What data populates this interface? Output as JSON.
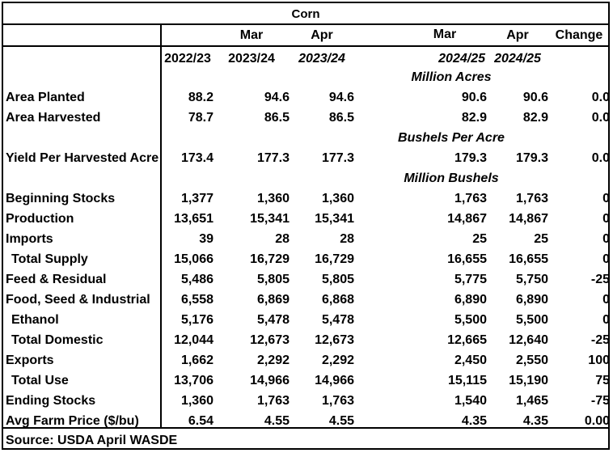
{
  "title": "Corn",
  "header": {
    "row1": [
      "Mar",
      "Apr",
      "Mar",
      "Apr",
      "Change"
    ],
    "row2": [
      "2022/23",
      "2023/24",
      "2023/24",
      "2024/25",
      "2024/25"
    ]
  },
  "units": {
    "acres": "Million Acres",
    "yield": "Bushels Per Acre",
    "bushels": "Million Bushels"
  },
  "rows": [
    {
      "label": "Area Planted",
      "values": [
        "88.2",
        "94.6",
        "94.6",
        "90.6",
        "90.6",
        "0.0"
      ]
    },
    {
      "label": "Area Harvested",
      "values": [
        "78.7",
        "86.5",
        "86.5",
        "82.9",
        "82.9",
        "0.0"
      ]
    },
    {
      "label": "Yield Per Harvested Acre",
      "values": [
        "173.4",
        "177.3",
        "177.3",
        "179.3",
        "179.3",
        "0.0"
      ]
    },
    {
      "label": "Beginning Stocks",
      "values": [
        "1,377",
        "1,360",
        "1,360",
        "1,763",
        "1,763",
        "0"
      ]
    },
    {
      "label": "Production",
      "values": [
        "13,651",
        "15,341",
        "15,341",
        "14,867",
        "14,867",
        "0"
      ]
    },
    {
      "label": "Imports",
      "values": [
        "39",
        "28",
        "28",
        "25",
        "25",
        "0"
      ]
    },
    {
      "label": "Total Supply",
      "values": [
        "15,066",
        "16,729",
        "16,729",
        "16,655",
        "16,655",
        "0"
      ]
    },
    {
      "label": "Feed & Residual",
      "values": [
        "5,486",
        "5,805",
        "5,805",
        "5,775",
        "5,750",
        "-25"
      ]
    },
    {
      "label": "Food, Seed & Industrial",
      "values": [
        "6,558",
        "6,869",
        "6,868",
        "6,890",
        "6,890",
        "0"
      ]
    },
    {
      "label": "Ethanol",
      "values": [
        "5,176",
        "5,478",
        "5,478",
        "5,500",
        "5,500",
        "0"
      ]
    },
    {
      "label": "Total Domestic",
      "values": [
        "12,044",
        "12,673",
        "12,673",
        "12,665",
        "12,640",
        "-25"
      ]
    },
    {
      "label": "Exports",
      "values": [
        "1,662",
        "2,292",
        "2,292",
        "2,450",
        "2,550",
        "100"
      ]
    },
    {
      "label": "Total Use",
      "values": [
        "13,706",
        "14,966",
        "14,966",
        "15,115",
        "15,190",
        "75"
      ]
    },
    {
      "label": "Ending Stocks",
      "values": [
        "1,360",
        "1,763",
        "1,763",
        "1,540",
        "1,465",
        "-75"
      ]
    },
    {
      "label": "Avg Farm Price ($/bu)",
      "values": [
        "6.54",
        "4.55",
        "4.55",
        "4.35",
        "4.35",
        "0.00"
      ]
    }
  ],
  "source": "Source: USDA April WASDE"
}
